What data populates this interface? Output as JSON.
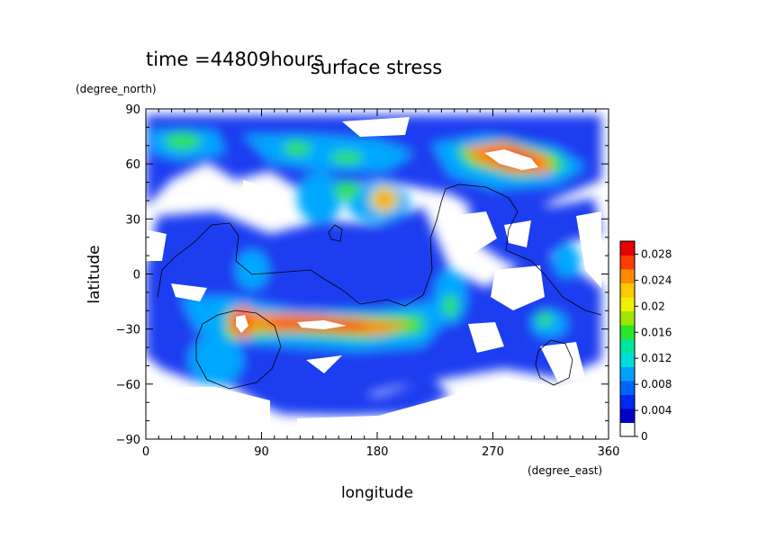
{
  "figure": {
    "time_label": "time =44809hours",
    "title": "surface stress"
  },
  "chart_data": {
    "type": "heatmap",
    "title": "surface stress",
    "xlabel": "longitude",
    "ylabel": "latitude",
    "x_units": "(degree_east)",
    "y_units": "(degree_north)",
    "xlim": [
      0,
      360
    ],
    "ylim": [
      -90,
      90
    ],
    "xticks": [
      0,
      90,
      180,
      270,
      360
    ],
    "xtick_labels": [
      "0",
      "90",
      "180",
      "270",
      "360"
    ],
    "yticks": [
      90,
      60,
      30,
      0,
      -30,
      -60,
      -90
    ],
    "ytick_labels": [
      "90",
      "60",
      "30",
      "0",
      "−30",
      "−60",
      "−90"
    ],
    "colorbar": {
      "min": 0,
      "max": 0.03,
      "ticks": [
        0,
        0.004,
        0.008,
        0.012,
        0.016,
        0.02,
        0.024,
        0.028
      ],
      "tick_labels": [
        "0",
        "0.004",
        "0.008",
        "0.012",
        "0.016",
        "0.02",
        "0.024",
        "0.028"
      ],
      "colors": [
        "#ffffff",
        "#0000c8",
        "#0028f0",
        "#0064ff",
        "#00a0ff",
        "#00dcdc",
        "#00e6a0",
        "#28e628",
        "#a0e600",
        "#f0f000",
        "#ffc800",
        "#ff8c00",
        "#ff3c00",
        "#e60000"
      ]
    },
    "grid": false,
    "legend_position": "right",
    "features": [
      {
        "lon": 270,
        "lat": 65,
        "value": 0.028
      },
      {
        "lon": 250,
        "lat": 70,
        "value": 0.016
      },
      {
        "lon": 290,
        "lat": 62,
        "value": 0.018
      },
      {
        "lon": 120,
        "lat": -27,
        "value": 0.028
      },
      {
        "lon": 165,
        "lat": -30,
        "value": 0.024
      },
      {
        "lon": 205,
        "lat": -30,
        "value": 0.016
      },
      {
        "lon": 70,
        "lat": -28,
        "value": 0.028
      },
      {
        "lon": 65,
        "lat": -45,
        "value": 0.01
      },
      {
        "lon": 185,
        "lat": 42,
        "value": 0.024
      },
      {
        "lon": 155,
        "lat": 65,
        "value": 0.016
      },
      {
        "lon": 25,
        "lat": 72,
        "value": 0.016
      },
      {
        "lon": 115,
        "lat": 60,
        "value": 0.01
      },
      {
        "lon": 150,
        "lat": 45,
        "value": 0.012
      },
      {
        "lon": 240,
        "lat": -15,
        "value": 0.012
      },
      {
        "lon": 310,
        "lat": -25,
        "value": 0.01
      },
      {
        "lon": 330,
        "lat": 5,
        "value": 0.008
      },
      {
        "lon": 100,
        "lat": 10,
        "value": 0.008
      },
      {
        "lon": 20,
        "lat": -25,
        "value": 0.006
      }
    ]
  }
}
